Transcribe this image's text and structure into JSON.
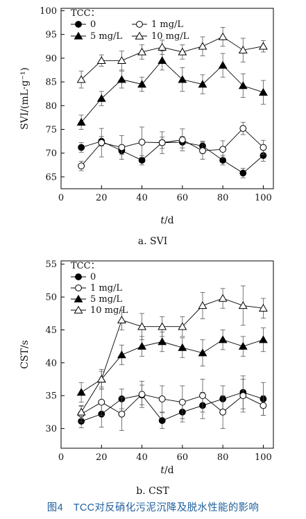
{
  "figure_caption": "图4　TCC对反硝化污泥沉降及脱水性能的影响",
  "series_styles": {
    "0": {
      "marker": "circle",
      "fill": "#000000"
    },
    "1 mg/L": {
      "marker": "circle",
      "fill": "#ffffff"
    },
    "5 mg/L": {
      "marker": "triangle",
      "fill": "#000000"
    },
    "10 mg/L": {
      "marker": "triangle",
      "fill": "#ffffff"
    }
  },
  "chart_data": [
    {
      "type": "line",
      "panel_caption": "a. SVI",
      "ylabel": "SVI/(mL·g⁻¹)",
      "xlabel_italic": "t",
      "xlabel_rest": "/d",
      "legend_title": "TCC：",
      "legend_placement": "top-left",
      "x": [
        10,
        20,
        30,
        40,
        50,
        60,
        70,
        80,
        90,
        100
      ],
      "xlim": [
        0,
        105
      ],
      "ylim": [
        62.5,
        100.5
      ],
      "xticks": [
        0,
        20,
        40,
        60,
        80,
        100
      ],
      "yticks": [
        65,
        70,
        75,
        80,
        85,
        90,
        95,
        100
      ],
      "series": [
        {
          "name": "0",
          "values": [
            71.2,
            72.5,
            70.5,
            68.5,
            72.2,
            72.3,
            71.5,
            68.5,
            65.8,
            69.5
          ],
          "errors": [
            1.0,
            1.0,
            0.8,
            1.0,
            1.2,
            1.2,
            1.0,
            1.0,
            1.0,
            1.2
          ]
        },
        {
          "name": "1 mg/L",
          "values": [
            67.3,
            72.2,
            71.2,
            72.3,
            72.2,
            72.8,
            70.5,
            70.8,
            75.2,
            71.2
          ],
          "errors": [
            1.0,
            3.0,
            2.5,
            3.2,
            2.3,
            2.3,
            1.8,
            1.8,
            1.3,
            1.5
          ]
        },
        {
          "name": "5 mg/L",
          "values": [
            76.5,
            81.5,
            85.5,
            84.5,
            89.5,
            85.5,
            84.5,
            88.5,
            84.2,
            82.8
          ],
          "errors": [
            1.5,
            1.5,
            1.8,
            1.5,
            2.0,
            2.5,
            2.0,
            2.5,
            2.5,
            2.5
          ]
        },
        {
          "name": "10 mg/L",
          "values": [
            85.5,
            89.5,
            89.5,
            91.3,
            92.3,
            91.3,
            92.5,
            94.5,
            91.7,
            92.5
          ],
          "errors": [
            1.8,
            1.2,
            2.0,
            1.5,
            1.5,
            1.5,
            2.0,
            2.0,
            2.5,
            1.2
          ]
        }
      ]
    },
    {
      "type": "line",
      "panel_caption": "b. CST",
      "ylabel": "CST/s",
      "xlabel_italic": "t",
      "xlabel_rest": "/d",
      "legend_title": "TCC：",
      "legend_placement": "top-left",
      "x": [
        10,
        20,
        30,
        40,
        50,
        60,
        70,
        80,
        90,
        100
      ],
      "xlim": [
        0,
        105
      ],
      "ylim": [
        27,
        55.5
      ],
      "xticks": [
        0,
        20,
        40,
        60,
        80,
        100
      ],
      "yticks": [
        30,
        35,
        40,
        45,
        50,
        55
      ],
      "series": [
        {
          "name": "0",
          "values": [
            31.1,
            32.2,
            34.5,
            35.1,
            31.2,
            32.5,
            33.5,
            34.5,
            35.5,
            34.5
          ],
          "errors": [
            1.0,
            2.0,
            1.5,
            1.5,
            1.2,
            1.5,
            2.0,
            2.0,
            2.5,
            2.5
          ]
        },
        {
          "name": "1 mg/L",
          "values": [
            32.2,
            34.0,
            32.2,
            35.2,
            34.5,
            34.0,
            35.0,
            32.5,
            35.0,
            33.5
          ],
          "errors": [
            1.2,
            2.0,
            2.5,
            2.0,
            2.0,
            2.5,
            2.5,
            2.5,
            2.5,
            1.5
          ]
        },
        {
          "name": "5 mg/L",
          "values": [
            35.5,
            37.5,
            41.2,
            42.5,
            43.2,
            42.3,
            41.5,
            43.5,
            42.5,
            43.5
          ],
          "errors": [
            1.5,
            1.5,
            1.5,
            1.5,
            1.5,
            1.5,
            2.0,
            1.5,
            1.5,
            1.8
          ]
        },
        {
          "name": "10 mg/L",
          "values": [
            32.5,
            37.5,
            46.5,
            45.5,
            45.5,
            45.5,
            48.7,
            49.8,
            48.7,
            48.3
          ],
          "errors": [
            1.0,
            1.2,
            1.5,
            2.0,
            1.5,
            1.5,
            2.0,
            1.5,
            3.0,
            1.5
          ]
        }
      ]
    }
  ]
}
